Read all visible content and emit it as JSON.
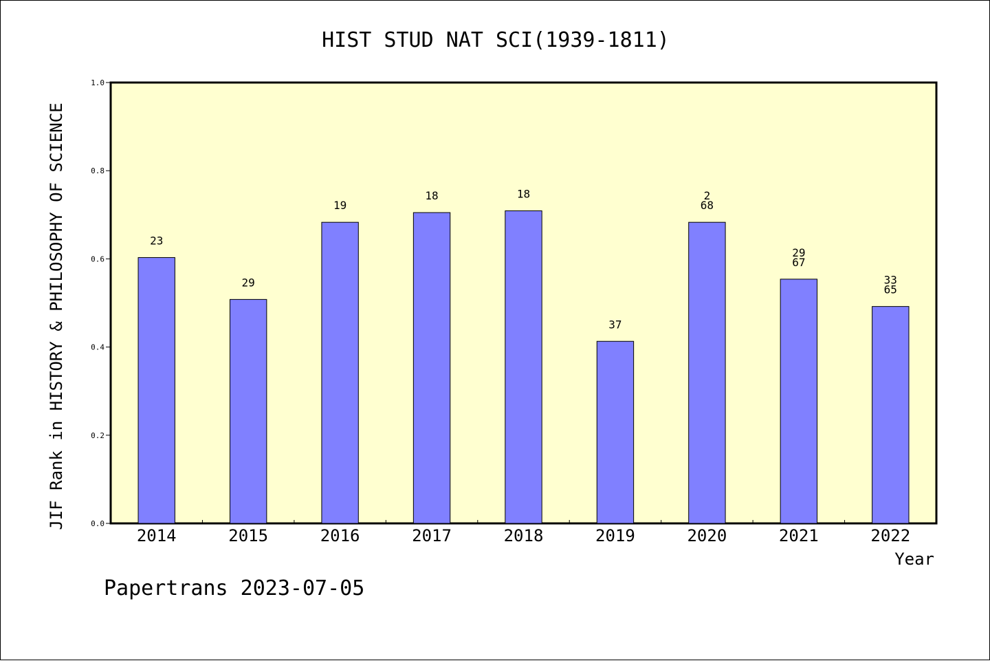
{
  "chart_data": {
    "type": "bar",
    "title": "HIST STUD NAT SCI(1939-1811)",
    "xlabel": "Year",
    "ylabel": "JIF Rank in HISTORY & PHILOSOPHY OF SCIENCE",
    "ylim": [
      0,
      1.0
    ],
    "yticks": [
      "0.0",
      "0.2",
      "0.4",
      "0.6",
      "0.8",
      "1.0"
    ],
    "categories": [
      "2014",
      "2015",
      "2016",
      "2017",
      "2018",
      "2019",
      "2020",
      "2021",
      "2022"
    ],
    "values": [
      0.603,
      0.508,
      0.683,
      0.705,
      0.709,
      0.413,
      0.683,
      0.554,
      0.492
    ],
    "bar_labels": [
      [
        "23"
      ],
      [
        "29"
      ],
      [
        "19"
      ],
      [
        "18"
      ],
      [
        "18"
      ],
      [
        "37"
      ],
      [
        "2",
        "68"
      ],
      [
        "29",
        "67"
      ],
      [
        "33",
        "65"
      ]
    ],
    "grid": false,
    "bar_color": "#8080ff",
    "plot_background": "#ffffd0"
  },
  "footer": "Papertrans 2023-07-05"
}
